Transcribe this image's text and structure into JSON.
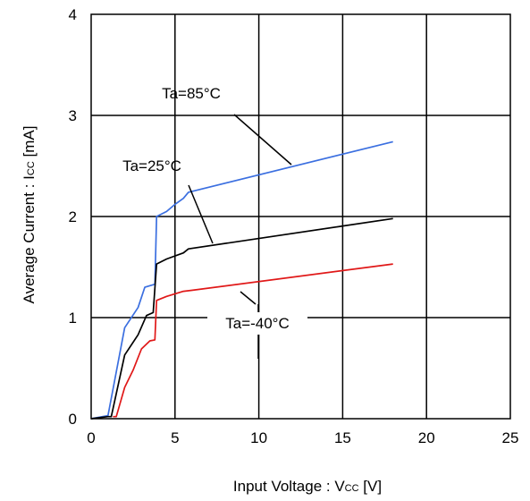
{
  "chart_data": {
    "type": "line",
    "xlabel": {
      "prefix": "Input Voltage : V",
      "sub": "CC",
      "suffix": " [V]"
    },
    "ylabel": {
      "prefix": "Average Current : I",
      "sub": "CC",
      "suffix": " [mA]"
    },
    "xlim": [
      0,
      25
    ],
    "ylim": [
      0,
      4
    ],
    "xticks": [
      0,
      5,
      10,
      15,
      20,
      25
    ],
    "yticks": [
      0,
      1,
      2,
      3,
      4
    ],
    "grid": true,
    "series": [
      {
        "name": "Ta=85°C",
        "color": "#3b6fe0",
        "points": [
          [
            0,
            0
          ],
          [
            1,
            0.03
          ],
          [
            2,
            0.9
          ],
          [
            2.8,
            1.1
          ],
          [
            3.2,
            1.3
          ],
          [
            3.8,
            1.33
          ],
          [
            3.9,
            2.0
          ],
          [
            4.5,
            2.05
          ],
          [
            5.0,
            2.12
          ],
          [
            5.5,
            2.18
          ],
          [
            5.8,
            2.24
          ],
          [
            18,
            2.74
          ]
        ]
      },
      {
        "name": "Ta=25°C",
        "color": "#000000",
        "points": [
          [
            0,
            0
          ],
          [
            1.0,
            0.02
          ],
          [
            1.2,
            0.02
          ],
          [
            2,
            0.63
          ],
          [
            2.8,
            0.83
          ],
          [
            3.3,
            1.02
          ],
          [
            3.7,
            1.05
          ],
          [
            3.9,
            1.53
          ],
          [
            4.5,
            1.58
          ],
          [
            5.5,
            1.64
          ],
          [
            5.8,
            1.68
          ],
          [
            18,
            1.98
          ]
        ]
      },
      {
        "name": "Ta=-40°C",
        "color": "#e01818",
        "points": [
          [
            1.3,
            0.02
          ],
          [
            1.5,
            0.02
          ],
          [
            2,
            0.31
          ],
          [
            2.5,
            0.48
          ],
          [
            3.0,
            0.69
          ],
          [
            3.5,
            0.77
          ],
          [
            3.8,
            0.78
          ],
          [
            3.9,
            1.17
          ],
          [
            4.5,
            1.21
          ],
          [
            5.5,
            1.26
          ],
          [
            6.0,
            1.27
          ],
          [
            18,
            1.53
          ]
        ]
      }
    ]
  }
}
